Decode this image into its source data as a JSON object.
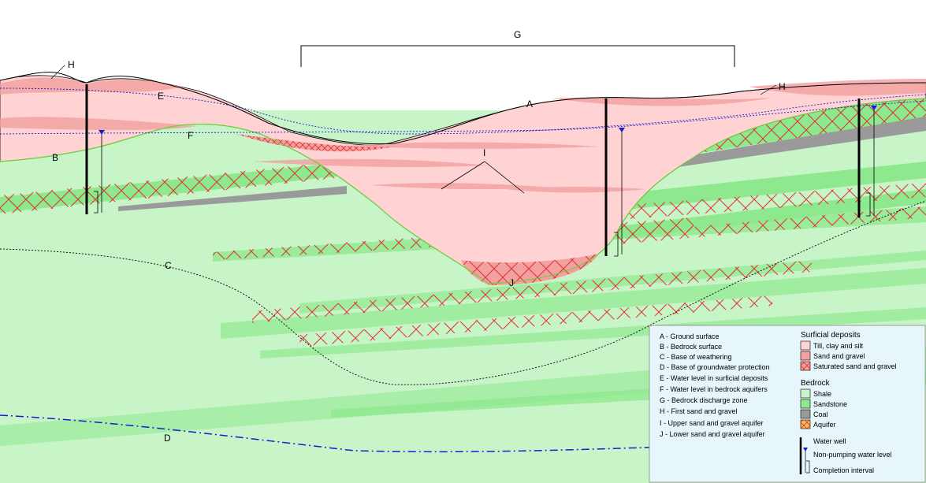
{
  "diagram": {
    "point_labels": {
      "A": "A",
      "B": "B",
      "C": "C",
      "D": "D",
      "E": "E",
      "F": "F",
      "G": "G",
      "H": "H",
      "I": "I",
      "J": "J"
    },
    "colors": {
      "shale": "#c8f5c8",
      "sandstone": "#8ee88e",
      "coal": "#9a9a9a",
      "till": "#ffd3d3",
      "sand_gravel": "#f2a0a0",
      "aquifer_hatch": "#e23030",
      "water_level": "#1a1ad0",
      "legend_bg": "#e6f6fb"
    }
  },
  "legend": {
    "key_items": [
      "A - Ground surface",
      "B - Bedrock surface",
      "C - Base of weathering",
      "D - Base of groundwater protection",
      "E - Water level in surficial deposits",
      "F - Water level in bedrock aquifers",
      "G - Bedrock discharge zone",
      "H - First sand and gravel",
      "I  - Upper sand and gravel aquifer",
      "J - Lower sand and gravel aquifer"
    ],
    "surficial_title": "Surficial deposits",
    "surficial_items": [
      "Till, clay and silt",
      "Sand and gravel",
      "Saturated sand and gravel"
    ],
    "bedrock_title": "Bedrock",
    "bedrock_items": [
      "Shale",
      "Sandstone",
      "Coal",
      "Aquifer"
    ],
    "well_items": [
      "Water well",
      "Non-pumping water level",
      "Completion interval"
    ]
  }
}
